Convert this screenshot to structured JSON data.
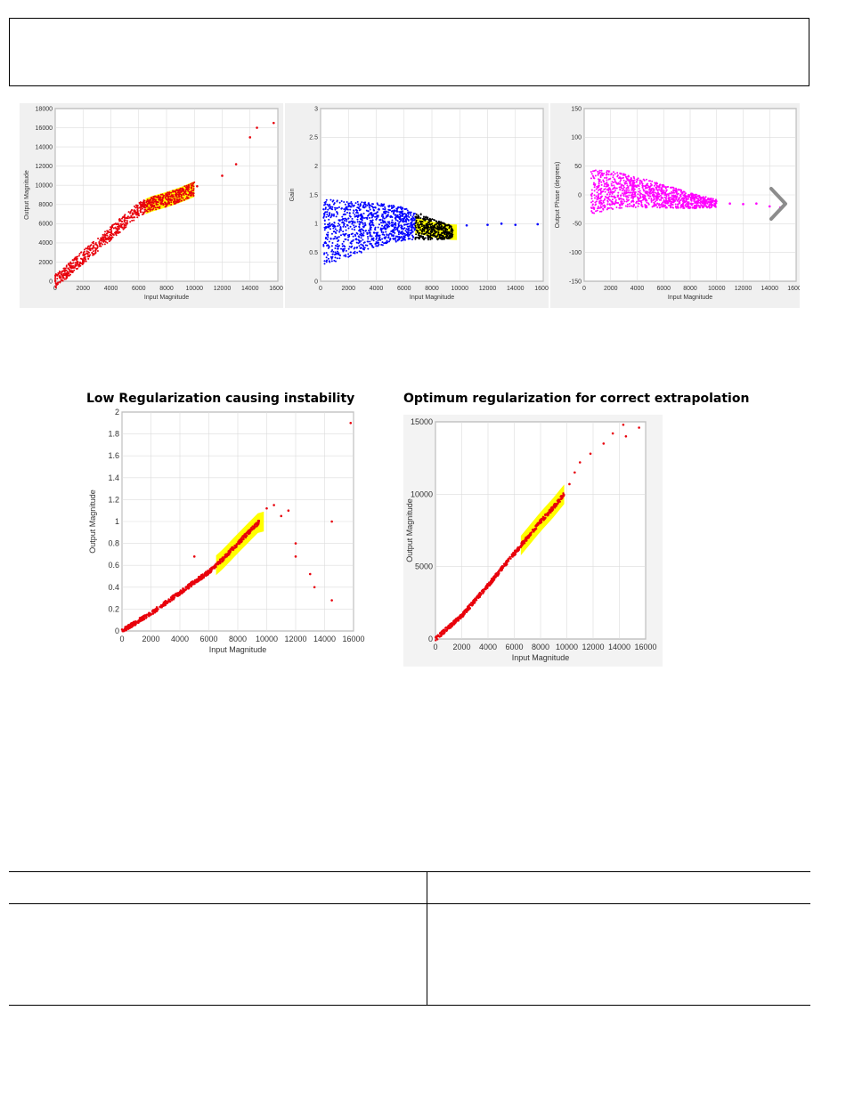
{
  "header_box": {
    "text": ""
  },
  "top_row": {
    "panel_titles_note": "",
    "next_icon": "chevron-right-icon"
  },
  "captions": {
    "left": "Low Regularization causing instability",
    "right": "Optimum regularization for correct extrapolation"
  },
  "chart_data": [
    {
      "type": "scatter",
      "title": "",
      "xlabel": "Input Magnitude",
      "ylabel": "Output Magnitude",
      "xlim": [
        0,
        16000
      ],
      "ylim": [
        0,
        18000
      ],
      "xticks": [
        0,
        2000,
        4000,
        6000,
        8000,
        10000,
        12000,
        14000,
        16000
      ],
      "yticks": [
        0,
        2000,
        4000,
        6000,
        8000,
        10000,
        12000,
        14000,
        16000,
        18000
      ],
      "grid": true,
      "series_color": "#e8000b",
      "highlight_color": "#ffff00",
      "highlight_x": [
        6500,
        10000
      ],
      "trend": [
        [
          0,
          0
        ],
        [
          6000,
          7500
        ],
        [
          7000,
          8100
        ],
        [
          8000,
          8500
        ],
        [
          9000,
          9000
        ],
        [
          10000,
          9600
        ]
      ],
      "outliers": [
        [
          10200,
          9900
        ],
        [
          12000,
          11000
        ],
        [
          13000,
          12200
        ],
        [
          14000,
          15000
        ],
        [
          14500,
          16000
        ],
        [
          15700,
          16500
        ]
      ]
    },
    {
      "type": "scatter",
      "title": "",
      "xlabel": "Input Magnitude",
      "ylabel": "Gain",
      "xlim": [
        0,
        16000
      ],
      "ylim": [
        0,
        3
      ],
      "xticks": [
        0,
        2000,
        4000,
        6000,
        8000,
        10000,
        12000,
        14000,
        16000
      ],
      "yticks": [
        0,
        0.5,
        1,
        1.5,
        2,
        2.5,
        3
      ],
      "grid": true,
      "series_color": "#0000ff",
      "highlight_color": "#ffff00",
      "highlight_x": [
        6800,
        9800
      ],
      "trend": [
        [
          200,
          0.85
        ],
        [
          2000,
          0.9
        ],
        [
          4000,
          0.98
        ],
        [
          6000,
          1.0
        ],
        [
          7000,
          0.96
        ],
        [
          8000,
          0.9
        ],
        [
          9500,
          0.85
        ]
      ],
      "outliers": [
        [
          10500,
          0.97
        ],
        [
          12000,
          0.98
        ],
        [
          13000,
          1.0
        ],
        [
          14000,
          0.98
        ],
        [
          15600,
          0.99
        ]
      ]
    },
    {
      "type": "scatter",
      "title": "",
      "xlabel": "Input Magnitude",
      "ylabel": "Output Phase (degrees)",
      "xlim": [
        0,
        16000
      ],
      "ylim": [
        -150,
        150
      ],
      "xticks": [
        0,
        2000,
        4000,
        6000,
        8000,
        10000,
        12000,
        14000,
        16000
      ],
      "yticks": [
        -150,
        -100,
        -50,
        0,
        50,
        100,
        150
      ],
      "grid": true,
      "series_color": "#ff00ff",
      "trend": [
        [
          500,
          5
        ],
        [
          2000,
          8
        ],
        [
          4000,
          5
        ],
        [
          6000,
          -2
        ],
        [
          8000,
          -10
        ],
        [
          10000,
          -15
        ]
      ],
      "outliers": [
        [
          11000,
          -15
        ],
        [
          12000,
          -16
        ],
        [
          13000,
          -15
        ],
        [
          14000,
          -20
        ],
        [
          14800,
          -22
        ]
      ]
    },
    {
      "type": "scatter",
      "title": "",
      "xlabel": "Input Magnitude",
      "ylabel": "Output Magnitude",
      "xlim": [
        0,
        16000
      ],
      "ylim": [
        0,
        2
      ],
      "xticks": [
        0,
        2000,
        4000,
        6000,
        8000,
        10000,
        12000,
        14000,
        16000
      ],
      "yticks": [
        0,
        0.2,
        0.4,
        0.6,
        0.8,
        1,
        1.2,
        1.4,
        1.6,
        1.8,
        2
      ],
      "grid": true,
      "series_color": "#e8000b",
      "highlight_color": "#ffff00",
      "highlight_x": [
        6500,
        9800
      ],
      "trend": [
        [
          0,
          0
        ],
        [
          2000,
          0.16
        ],
        [
          4000,
          0.35
        ],
        [
          6000,
          0.54
        ],
        [
          7000,
          0.66
        ],
        [
          8000,
          0.8
        ],
        [
          9500,
          1.0
        ]
      ],
      "outliers": [
        [
          1500,
          0.13
        ],
        [
          5000,
          0.68
        ],
        [
          10000,
          1.12
        ],
        [
          10500,
          1.15
        ],
        [
          11000,
          1.05
        ],
        [
          11500,
          1.1
        ],
        [
          12000,
          0.8
        ],
        [
          12000,
          0.68
        ],
        [
          13000,
          0.52
        ],
        [
          13300,
          0.4
        ],
        [
          14500,
          1.0
        ],
        [
          14500,
          0.28
        ],
        [
          15800,
          1.9
        ]
      ]
    },
    {
      "type": "scatter",
      "title": "",
      "xlabel": "Input Magnitude",
      "ylabel": "Output Magnitude",
      "xlim": [
        0,
        16000
      ],
      "ylim": [
        0,
        15000
      ],
      "xticks": [
        0,
        2000,
        4000,
        6000,
        8000,
        10000,
        12000,
        14000,
        16000
      ],
      "yticks": [
        0,
        5000,
        10000,
        15000
      ],
      "grid": true,
      "series_color": "#e8000b",
      "highlight_color": "#ffff00",
      "highlight_x": [
        6500,
        9800
      ],
      "trend": [
        [
          0,
          0
        ],
        [
          2000,
          1600
        ],
        [
          4000,
          3700
        ],
        [
          6000,
          5900
        ],
        [
          7000,
          7000
        ],
        [
          8000,
          8100
        ],
        [
          9000,
          9100
        ],
        [
          9800,
          10000
        ]
      ],
      "outliers": [
        [
          10200,
          10700
        ],
        [
          10600,
          11500
        ],
        [
          11000,
          12200
        ],
        [
          11800,
          12800
        ],
        [
          12800,
          13500
        ],
        [
          13500,
          14200
        ],
        [
          14300,
          14800
        ],
        [
          14500,
          14000
        ],
        [
          15500,
          14600
        ]
      ]
    }
  ],
  "bottom_table": {
    "row1": [
      "",
      ""
    ],
    "row2": [
      "",
      ""
    ]
  }
}
